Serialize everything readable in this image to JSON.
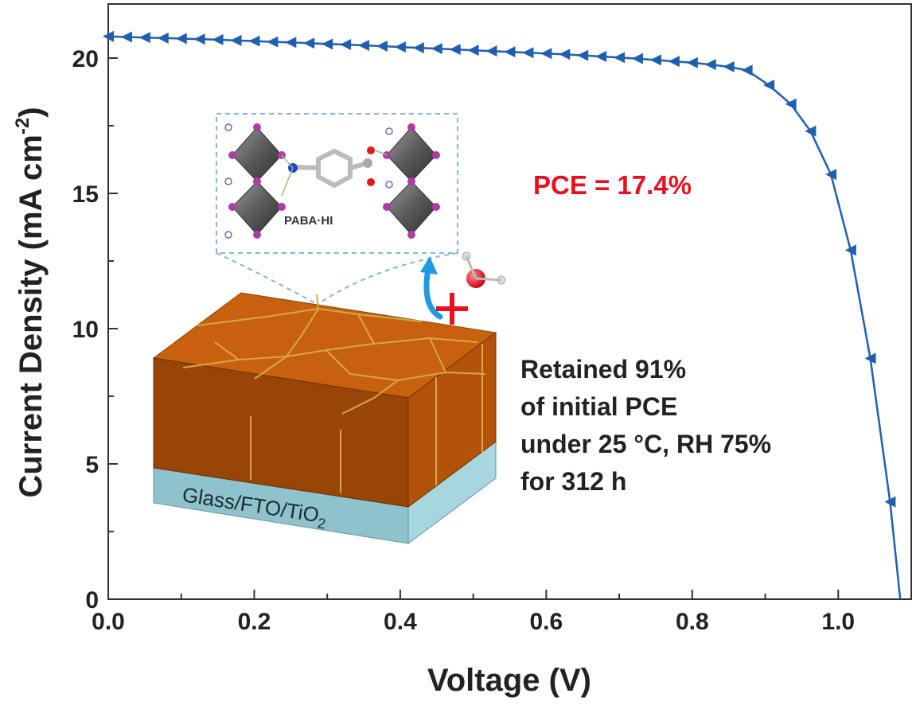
{
  "chart_data": {
    "type": "line",
    "xlabel": "Voltage (V)",
    "ylabel_main": "Current Density (mA cm",
    "ylabel_sup": "-2",
    "ylabel_close": ")",
    "xlim": [
      0.0,
      1.1
    ],
    "ylim": [
      0,
      22
    ],
    "xticks": [
      "0.0",
      "0.2",
      "0.4",
      "0.6",
      "0.8",
      "1.0"
    ],
    "xtick_values": [
      0.0,
      0.2,
      0.4,
      0.6,
      0.8,
      1.0
    ],
    "yticks": [
      "0",
      "5",
      "10",
      "15",
      "20"
    ],
    "ytick_values": [
      0,
      5,
      10,
      15,
      20
    ],
    "grid": false,
    "line_color": "#1f5fb0",
    "marker": "left-triangle",
    "series": [
      {
        "x": [
          0.0,
          0.025,
          0.05,
          0.075,
          0.1,
          0.125,
          0.15,
          0.175,
          0.2,
          0.225,
          0.25,
          0.275,
          0.3,
          0.325,
          0.35,
          0.375,
          0.4,
          0.425,
          0.45,
          0.475,
          0.5,
          0.525,
          0.55,
          0.575,
          0.6,
          0.625,
          0.65,
          0.675,
          0.7,
          0.725,
          0.75,
          0.775,
          0.8,
          0.825,
          0.85,
          0.875,
          0.905,
          0.935,
          0.962,
          0.99,
          1.017,
          1.044,
          1.071,
          1.085
        ],
        "y": [
          20.8,
          20.78,
          20.76,
          20.74,
          20.72,
          20.7,
          20.68,
          20.65,
          20.63,
          20.6,
          20.58,
          20.55,
          20.52,
          20.5,
          20.47,
          20.44,
          20.41,
          20.38,
          20.35,
          20.32,
          20.29,
          20.26,
          20.23,
          20.2,
          20.17,
          20.14,
          20.1,
          20.06,
          20.02,
          19.98,
          19.93,
          19.88,
          19.83,
          19.76,
          19.68,
          19.55,
          19.0,
          18.3,
          17.3,
          15.7,
          12.9,
          8.9,
          3.6,
          0.0
        ]
      }
    ],
    "annotations": {
      "pce": "PCE = 17.4%",
      "retention": [
        "Retained 91%",
        "of initial PCE",
        "under 25 °C, RH 75%",
        "for 312 h"
      ],
      "molecule": "PABA·HI",
      "substrate_main": "Glass/FTO/TiO",
      "substrate_sub": "2"
    }
  }
}
